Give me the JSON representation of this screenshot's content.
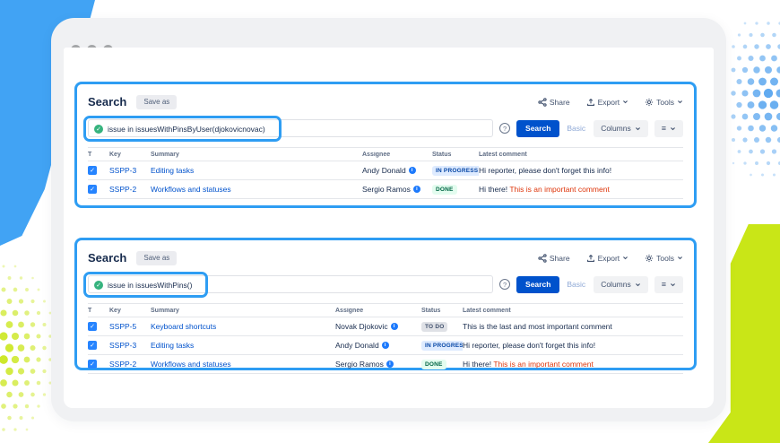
{
  "icons": {
    "valid": "✓",
    "task": "✓",
    "help": "?",
    "menu": "≡",
    "info": "i"
  },
  "colors": {
    "annotation_blue": "#2E9DF3",
    "shape_blue": "#41A3F4",
    "shape_lime": "#C9E617",
    "primary_button": "#0052CC",
    "link": "#0052CC",
    "valid_green": "#36B37E",
    "comment_red": "#DE350B",
    "status_todo": "#DFE1E6",
    "status_inprogress": "#DEEBFF",
    "status_done": "#E3FCEF"
  },
  "panels": [
    {
      "title": "Search",
      "save_as_label": "Save as",
      "share_label": "Share",
      "export_label": "Export",
      "tools_label": "Tools",
      "query": "issue in issuesWithPinsByUser(djokovicnovac)",
      "search_label": "Search",
      "basic_label": "Basic",
      "columns_label": "Columns",
      "columns": [
        "T",
        "Key",
        "Summary",
        "Assignee",
        "Status",
        "Latest comment"
      ],
      "rows": [
        {
          "key": "SSPP-3",
          "summary": "Editing tasks",
          "assignee": "Andy Donald",
          "status": "IN PROGRESS",
          "comment": "Hi reporter, please don't forget this info!",
          "comment_red": ""
        },
        {
          "key": "SSPP-2",
          "summary": "Workflows and statuses",
          "assignee": "Sergio Ramos",
          "status": "DONE",
          "comment": "Hi there! ",
          "comment_red": "This is an important comment"
        }
      ]
    },
    {
      "title": "Search",
      "save_as_label": "Save as",
      "share_label": "Share",
      "export_label": "Export",
      "tools_label": "Tools",
      "query": "issue in issuesWithPins()",
      "search_label": "Search",
      "basic_label": "Basic",
      "columns_label": "Columns",
      "columns": [
        "T",
        "Key",
        "Summary",
        "Assignee",
        "Status",
        "Latest comment"
      ],
      "rows": [
        {
          "key": "SSPP-5",
          "summary": "Keyboard shortcuts",
          "assignee": "Novak Djokovic",
          "status": "TO DO",
          "comment": "This is the last and most important comment",
          "comment_red": ""
        },
        {
          "key": "SSPP-3",
          "summary": "Editing tasks",
          "assignee": "Andy Donald",
          "status": "IN PROGRESS",
          "comment": "Hi reporter, please don't forget this info!",
          "comment_red": ""
        },
        {
          "key": "SSPP-2",
          "summary": "Workflows and statuses",
          "assignee": "Sergio Ramos",
          "status": "DONE",
          "comment": "Hi there! ",
          "comment_red": "This is an important comment"
        }
      ]
    }
  ]
}
